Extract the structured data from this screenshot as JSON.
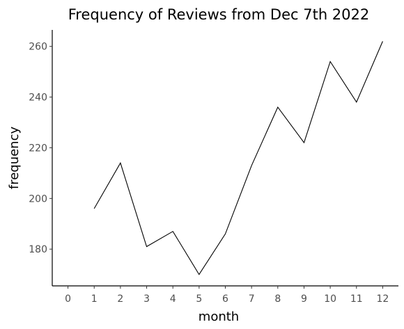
{
  "chart_data": {
    "type": "line",
    "title": "Frequency of Reviews from Dec 7th 2022",
    "xlabel": "month",
    "ylabel": "frequency",
    "xlim": [
      -0.6,
      12.6
    ],
    "ylim": [
      165.5,
      266.5
    ],
    "xticks": [
      0,
      1,
      2,
      3,
      4,
      5,
      6,
      7,
      8,
      9,
      10,
      11,
      12
    ],
    "yticks": [
      180,
      200,
      220,
      240,
      260
    ],
    "grid": false,
    "line_color": "#000000",
    "x": [
      1,
      2,
      3,
      4,
      5,
      6,
      7,
      8,
      9,
      10,
      11,
      12
    ],
    "values": [
      196,
      214,
      181,
      187,
      170,
      186,
      213,
      236,
      222,
      254,
      238,
      262
    ]
  }
}
